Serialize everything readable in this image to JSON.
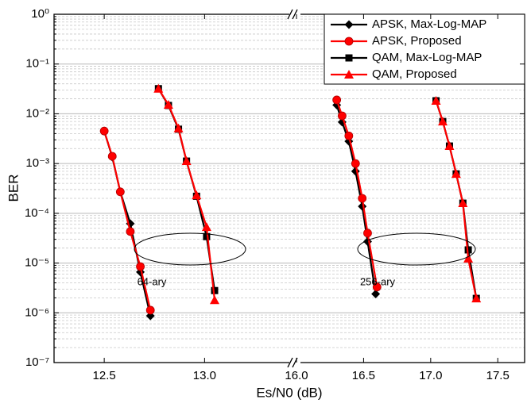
{
  "chart_data": {
    "type": "line",
    "x_label": "Es/N0 (dB)",
    "y_label": "BER",
    "y_log": true,
    "grid": true,
    "minor_grid": true,
    "legend": "top-right",
    "ylim": [
      1e-07,
      1
    ],
    "yticks": [
      {
        "value": 1,
        "label": "10⁰"
      },
      {
        "value": 0.1,
        "label": "10⁻¹"
      },
      {
        "value": 0.01,
        "label": "10⁻²"
      },
      {
        "value": 0.001,
        "label": "10⁻³"
      },
      {
        "value": 0.0001,
        "label": "10⁻⁴"
      },
      {
        "value": 1e-05,
        "label": "10⁻⁵"
      },
      {
        "value": 1e-06,
        "label": "10⁻⁶"
      },
      {
        "value": 1e-07,
        "label": "10⁻⁷"
      }
    ],
    "x_segments": [
      {
        "xlim": [
          12.25,
          13.45
        ],
        "xticks": [
          12.5,
          {
            "value": 13.0,
            "label": "13.0"
          }
        ]
      },
      {
        "xlim": [
          16.0,
          17.7
        ],
        "xticks": [
          {
            "value": 16.0,
            "label": "16.0"
          },
          16.5,
          {
            "value": 17.0,
            "label": "17.0"
          },
          17.5
        ]
      }
    ],
    "series": [
      {
        "name": "APSK, Max-Log-MAP",
        "color": "#000000",
        "marker": "diamond",
        "x": [
          12.5,
          12.54,
          12.58,
          12.63,
          12.68,
          12.73,
          null,
          16.3,
          16.34,
          16.39,
          16.44,
          16.49,
          16.53,
          16.59
        ],
        "values": [
          0.0045,
          0.00135,
          0.00027,
          6.2e-05,
          6.6e-06,
          8.7e-07,
          null,
          0.015,
          0.0068,
          0.0028,
          0.0007,
          0.000138,
          2.7e-05,
          2.4e-06
        ]
      },
      {
        "name": "APSK, Proposed",
        "color": "#ff0000",
        "marker": "circle",
        "x": [
          12.5,
          12.54,
          12.58,
          12.63,
          12.68,
          12.73,
          null,
          16.3,
          16.34,
          16.39,
          16.44,
          16.49,
          16.53,
          16.6
        ],
        "values": [
          0.0045,
          0.0014,
          0.00027,
          4.3e-05,
          8.5e-06,
          1.13e-06,
          null,
          0.019,
          0.0091,
          0.0036,
          0.001,
          0.0002,
          4e-05,
          3.3e-06
        ]
      },
      {
        "name": "QAM, Max-Log-MAP",
        "color": "#000000",
        "marker": "square",
        "x": [
          12.77,
          12.82,
          12.87,
          12.91,
          12.96,
          13.01,
          13.05,
          null,
          17.04,
          17.09,
          17.14,
          17.19,
          17.24,
          17.28,
          17.34
        ],
        "values": [
          0.032,
          0.0147,
          0.0049,
          0.00112,
          0.00022,
          3.4e-05,
          2.8e-06,
          null,
          0.0183,
          0.007,
          0.00225,
          0.00062,
          0.00016,
          1.84e-05,
          1.95e-06
        ]
      },
      {
        "name": "QAM, Proposed",
        "color": "#ff0000",
        "marker": "triangle",
        "x": [
          12.77,
          12.82,
          12.87,
          12.91,
          12.96,
          13.01,
          13.05,
          null,
          17.04,
          17.09,
          17.14,
          17.19,
          17.24,
          17.28,
          17.34
        ],
        "values": [
          0.032,
          0.0152,
          0.0051,
          0.00112,
          0.00023,
          5.3e-05,
          1.8e-06,
          null,
          0.0183,
          0.007,
          0.00225,
          0.00062,
          0.00016,
          1.23e-05,
          1.95e-06
        ]
      }
    ],
    "annotations": [
      "64-ary",
      "256-ary"
    ]
  }
}
